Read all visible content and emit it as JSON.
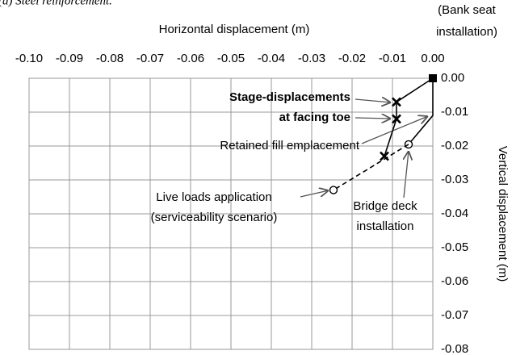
{
  "chart_data": {
    "type": "line",
    "title": "(d) Steel reinforcement.",
    "xlabel": "Horizontal displacement (m)",
    "ylabel": "Vertical displacement (m)",
    "corner_note": [
      "(Bank seat",
      "installation)"
    ],
    "xlim": [
      -0.1,
      0
    ],
    "xticks": [
      {
        "value": -0.1,
        "label": "-0.10"
      },
      {
        "value": -0.09,
        "label": "-0.09"
      },
      {
        "value": -0.08,
        "label": "-0.08"
      },
      {
        "value": -0.07,
        "label": "-0.07"
      },
      {
        "value": -0.06,
        "label": "-0.06"
      },
      {
        "value": -0.05,
        "label": "-0.05"
      },
      {
        "value": -0.04,
        "label": "-0.04"
      },
      {
        "value": -0.03,
        "label": "-0.03"
      },
      {
        "value": -0.02,
        "label": "-0.02"
      },
      {
        "value": -0.01,
        "label": "-0.01"
      },
      {
        "value": 0,
        "label": "0.00"
      }
    ],
    "ylim": [
      -0.08,
      0
    ],
    "yticks": [
      {
        "value": 0,
        "label": "0.00"
      },
      {
        "value": -0.01,
        "label": "-0.01"
      },
      {
        "value": -0.02,
        "label": "-0.02"
      },
      {
        "value": -0.03,
        "label": "-0.03"
      },
      {
        "value": -0.04,
        "label": "-0.04"
      },
      {
        "value": -0.05,
        "label": "-0.05"
      },
      {
        "value": -0.06,
        "label": "-0.06"
      },
      {
        "value": -0.07,
        "label": "-0.07"
      },
      {
        "value": -0.08,
        "label": "-0.08"
      }
    ],
    "grid": true,
    "series": [
      {
        "color": "#000000",
        "dashed": false,
        "x": [
          0,
          -0.009,
          -0.009,
          -0.012
        ],
        "values": [
          0,
          -0.007,
          -0.012,
          -0.023
        ],
        "markers": [
          "square",
          "cross",
          "cross",
          "cross"
        ]
      },
      {
        "color": "#000000",
        "dashed": false,
        "x": [
          0,
          0,
          -0.006
        ],
        "values": [
          0,
          -0.011,
          -0.0195
        ],
        "markers": [
          null,
          null,
          "circle"
        ]
      },
      {
        "color": "#000000",
        "dashed": true,
        "x": [
          -0.006,
          -0.0246
        ],
        "values": [
          -0.0195,
          -0.033
        ],
        "markers": [
          null,
          "circle"
        ]
      }
    ],
    "annotations": [
      {
        "lines": [
          "Stage-displacements",
          "at facing toe"
        ],
        "bold": true
      },
      {
        "lines": [
          "Retained fill emplacement"
        ],
        "bold": false
      },
      {
        "lines": [
          "Live loads application",
          "(serviceability scenario)"
        ],
        "bold": false
      },
      {
        "lines": [
          "Bridge deck",
          "installation"
        ],
        "bold": false
      }
    ]
  }
}
